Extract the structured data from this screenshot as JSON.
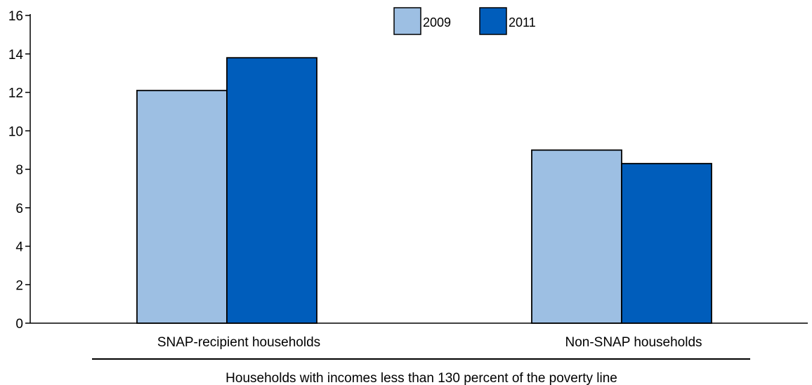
{
  "chart_data": {
    "type": "bar",
    "title": "",
    "xlabel": "",
    "ylabel": "",
    "categories": [
      "SNAP-recipient households",
      "Non-SNAP households"
    ],
    "group_label": "Households with incomes less than 130 percent of the poverty line",
    "series": [
      {
        "name": "2009",
        "values": [
          12.1,
          9.0
        ],
        "color": "#9dbfe3"
      },
      {
        "name": "2011",
        "values": [
          13.8,
          8.3
        ],
        "color": "#005dbb"
      }
    ],
    "ylim": [
      0,
      16
    ],
    "yticks": [
      "0",
      "2",
      "4",
      "6",
      "8",
      "10",
      "12",
      "14",
      "16"
    ],
    "grid": false,
    "legend_position": "top-center"
  }
}
